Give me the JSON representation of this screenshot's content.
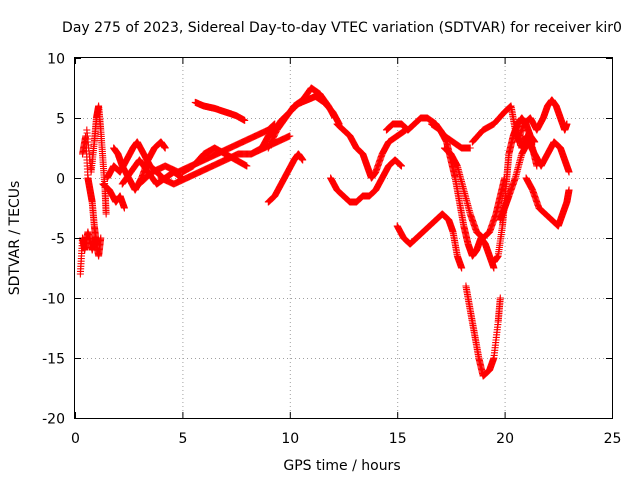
{
  "chart_data": {
    "type": "scatter",
    "title": "Day 275 of 2023, Sidereal Day-to-day VTEC variation (SDTVAR) for receiver kir0",
    "xlabel": "GPS time / hours",
    "ylabel": "SDTVAR / TECUs",
    "xlim": [
      0,
      25
    ],
    "ylim": [
      -20,
      10
    ],
    "xticks": [
      0,
      5,
      10,
      15,
      20,
      25
    ],
    "yticks": [
      -20,
      -15,
      -10,
      -5,
      0,
      5,
      10
    ],
    "grid": true,
    "marker": "+",
    "color": "#ff0000",
    "series": [
      {
        "points": [
          [
            0.25,
            -8.0
          ],
          [
            0.35,
            -5.0
          ],
          [
            0.45,
            -6.0
          ],
          [
            0.6,
            -4.5
          ],
          [
            0.8,
            -6.0
          ],
          [
            0.95,
            -5.0
          ],
          [
            1.1,
            -6.5
          ],
          [
            1.2,
            -5.0
          ]
        ]
      },
      {
        "points": [
          [
            0.35,
            2.0
          ],
          [
            0.5,
            3.5
          ],
          [
            0.6,
            0.0
          ],
          [
            0.7,
            -1.0
          ],
          [
            0.8,
            -2.0
          ],
          [
            0.9,
            -4.0
          ],
          [
            1.0,
            -5.5
          ]
        ]
      },
      {
        "points": [
          [
            0.55,
            4.0
          ],
          [
            0.75,
            0.5
          ],
          [
            0.9,
            3.0
          ],
          [
            1.0,
            5.0
          ],
          [
            1.1,
            6.0
          ],
          [
            1.2,
            4.0
          ],
          [
            1.3,
            1.5
          ],
          [
            1.4,
            -1.0
          ],
          [
            1.45,
            -3.0
          ]
        ]
      },
      {
        "points": [
          [
            1.3,
            -0.5
          ],
          [
            1.6,
            -1.0
          ],
          [
            1.9,
            -2.0
          ],
          [
            2.1,
            -1.5
          ],
          [
            2.3,
            -2.5
          ]
        ]
      },
      {
        "points": [
          [
            1.5,
            0.0
          ],
          [
            1.8,
            1.0
          ],
          [
            2.1,
            0.5
          ],
          [
            2.4,
            1.5
          ],
          [
            2.7,
            2.5
          ],
          [
            2.9,
            3.0
          ],
          [
            3.2,
            2.0
          ],
          [
            3.5,
            1.0
          ],
          [
            3.8,
            0.5
          ],
          [
            4.1,
            0.0
          ]
        ]
      },
      {
        "points": [
          [
            1.8,
            2.5
          ],
          [
            2.0,
            2.0
          ],
          [
            2.2,
            1.0
          ],
          [
            2.5,
            0.0
          ],
          [
            2.8,
            -1.0
          ],
          [
            3.1,
            0.0
          ],
          [
            3.4,
            1.5
          ],
          [
            3.7,
            2.5
          ],
          [
            4.0,
            3.0
          ],
          [
            4.2,
            2.5
          ]
        ]
      },
      {
        "points": [
          [
            2.2,
            -0.5
          ],
          [
            2.6,
            0.5
          ],
          [
            3.0,
            1.5
          ],
          [
            3.4,
            0.5
          ],
          [
            3.8,
            -0.5
          ],
          [
            4.2,
            0.0
          ],
          [
            4.6,
            0.5
          ],
          [
            5.0,
            0.0
          ]
        ]
      },
      {
        "points": [
          [
            3.0,
            -0.5
          ],
          [
            3.6,
            0.5
          ],
          [
            4.2,
            1.0
          ],
          [
            4.8,
            0.5
          ],
          [
            5.4,
            1.0
          ],
          [
            6.0,
            1.5
          ],
          [
            6.6,
            2.0
          ],
          [
            7.2,
            2.5
          ],
          [
            7.8,
            3.0
          ],
          [
            8.4,
            3.5
          ],
          [
            9.0,
            4.0
          ],
          [
            9.3,
            4.5
          ]
        ]
      },
      {
        "points": [
          [
            4.0,
            0.0
          ],
          [
            4.6,
            -0.5
          ],
          [
            5.2,
            0.0
          ],
          [
            5.8,
            0.5
          ],
          [
            6.4,
            1.0
          ],
          [
            7.0,
            1.5
          ],
          [
            7.6,
            2.0
          ],
          [
            8.2,
            2.0
          ],
          [
            8.8,
            2.5
          ],
          [
            9.4,
            3.0
          ],
          [
            10.0,
            3.5
          ]
        ]
      },
      {
        "points": [
          [
            5.0,
            0.5
          ],
          [
            5.5,
            1.0
          ],
          [
            6.0,
            2.0
          ],
          [
            6.5,
            2.5
          ],
          [
            7.0,
            2.0
          ],
          [
            7.5,
            1.5
          ],
          [
            8.0,
            1.0
          ]
        ]
      },
      {
        "points": [
          [
            5.6,
            6.3
          ],
          [
            6.0,
            6.0
          ],
          [
            6.5,
            5.8
          ],
          [
            7.0,
            5.5
          ],
          [
            7.5,
            5.2
          ],
          [
            7.9,
            4.8
          ]
        ]
      },
      {
        "points": [
          [
            8.2,
            2.0
          ],
          [
            8.7,
            2.5
          ],
          [
            9.0,
            3.5
          ],
          [
            9.3,
            4.0
          ],
          [
            9.6,
            4.8
          ],
          [
            10.0,
            5.5
          ],
          [
            10.4,
            6.2
          ],
          [
            10.8,
            6.5
          ],
          [
            11.2,
            6.8
          ],
          [
            11.6,
            6.3
          ],
          [
            12.0,
            5.5
          ],
          [
            12.3,
            4.5
          ]
        ]
      },
      {
        "points": [
          [
            9.0,
            2.5
          ],
          [
            9.4,
            4.0
          ],
          [
            9.8,
            5.0
          ],
          [
            10.2,
            6.0
          ],
          [
            10.6,
            6.5
          ],
          [
            11.0,
            7.5
          ],
          [
            11.4,
            7.0
          ],
          [
            11.8,
            6.0
          ],
          [
            12.1,
            5.0
          ]
        ]
      },
      {
        "points": [
          [
            9.0,
            -2.0
          ],
          [
            9.3,
            -1.5
          ],
          [
            9.6,
            -0.5
          ],
          [
            9.9,
            0.5
          ],
          [
            10.2,
            1.5
          ],
          [
            10.4,
            2.0
          ],
          [
            10.6,
            1.5
          ]
        ]
      },
      {
        "points": [
          [
            11.9,
            0.0
          ],
          [
            12.2,
            -1.0
          ],
          [
            12.5,
            -1.5
          ],
          [
            12.8,
            -2.0
          ],
          [
            13.1,
            -2.0
          ],
          [
            13.4,
            -1.5
          ],
          [
            13.7,
            -1.5
          ],
          [
            14.0,
            -1.0
          ],
          [
            14.3,
            0.0
          ],
          [
            14.6,
            1.0
          ],
          [
            14.9,
            1.5
          ],
          [
            15.2,
            1.0
          ]
        ]
      },
      {
        "points": [
          [
            12.2,
            4.5
          ],
          [
            12.5,
            4.0
          ],
          [
            12.8,
            3.5
          ],
          [
            13.1,
            2.5
          ],
          [
            13.4,
            2.0
          ],
          [
            13.6,
            1.0
          ],
          [
            13.8,
            0.0
          ],
          [
            14.0,
            0.5
          ],
          [
            14.3,
            2.0
          ],
          [
            14.6,
            3.0
          ],
          [
            15.0,
            3.5
          ],
          [
            15.4,
            4.0
          ]
        ]
      },
      {
        "points": [
          [
            14.5,
            4.0
          ],
          [
            14.8,
            4.5
          ],
          [
            15.2,
            4.5
          ],
          [
            15.5,
            4.0
          ],
          [
            15.8,
            4.5
          ],
          [
            16.1,
            5.0
          ],
          [
            16.4,
            5.0
          ],
          [
            16.8,
            4.5
          ],
          [
            17.2,
            3.5
          ],
          [
            17.6,
            3.0
          ],
          [
            18.0,
            2.5
          ],
          [
            18.4,
            2.5
          ]
        ]
      },
      {
        "points": [
          [
            15.0,
            -4.0
          ],
          [
            15.3,
            -5.0
          ],
          [
            15.6,
            -5.5
          ],
          [
            15.9,
            -5.0
          ],
          [
            16.2,
            -4.5
          ],
          [
            16.5,
            -4.0
          ],
          [
            16.8,
            -3.5
          ],
          [
            17.1,
            -3.0
          ],
          [
            17.4,
            -3.5
          ],
          [
            17.6,
            -4.5
          ],
          [
            17.8,
            -6.5
          ],
          [
            18.0,
            -7.5
          ]
        ]
      },
      {
        "points": [
          [
            16.6,
            4.5
          ],
          [
            17.0,
            4.0
          ],
          [
            17.3,
            3.0
          ],
          [
            17.5,
            1.5
          ],
          [
            17.7,
            0.0
          ],
          [
            17.9,
            -2.0
          ],
          [
            18.1,
            -4.0
          ],
          [
            18.3,
            -5.5
          ],
          [
            18.5,
            -6.5
          ],
          [
            18.7,
            -6.0
          ],
          [
            18.9,
            -5.0
          ],
          [
            19.1,
            -5.5
          ],
          [
            19.3,
            -6.5
          ],
          [
            19.5,
            -7.5
          ]
        ]
      },
      {
        "points": [
          [
            17.2,
            2.5
          ],
          [
            17.5,
            2.0
          ],
          [
            17.8,
            1.0
          ],
          [
            18.1,
            -1.0
          ],
          [
            18.4,
            -3.0
          ],
          [
            18.7,
            -4.5
          ],
          [
            19.0,
            -5.0
          ],
          [
            19.3,
            -4.5
          ],
          [
            19.6,
            -3.0
          ],
          [
            19.8,
            -1.5
          ],
          [
            20.0,
            0.0
          ]
        ]
      },
      {
        "points": [
          [
            18.2,
            -9.0
          ],
          [
            18.4,
            -11.0
          ],
          [
            18.6,
            -13.0
          ],
          [
            18.8,
            -15.0
          ],
          [
            19.0,
            -16.5
          ],
          [
            19.3,
            -16.0
          ],
          [
            19.5,
            -15.0
          ],
          [
            19.7,
            -12.0
          ],
          [
            19.8,
            -10.0
          ]
        ]
      },
      {
        "points": [
          [
            19.5,
            -7.0
          ],
          [
            19.7,
            -6.5
          ],
          [
            19.9,
            -4.0
          ],
          [
            20.0,
            -2.0
          ],
          [
            20.1,
            0.0
          ],
          [
            20.2,
            2.0
          ],
          [
            20.4,
            3.5
          ],
          [
            20.6,
            4.5
          ],
          [
            20.8,
            5.0
          ],
          [
            21.0,
            4.5
          ],
          [
            21.2,
            3.5
          ],
          [
            21.4,
            3.0
          ]
        ]
      },
      {
        "points": [
          [
            19.8,
            -3.5
          ],
          [
            20.0,
            -2.5
          ],
          [
            20.2,
            -1.5
          ],
          [
            20.5,
            0.0
          ],
          [
            20.8,
            2.0
          ],
          [
            21.1,
            3.0
          ],
          [
            21.4,
            2.0
          ],
          [
            21.7,
            1.0
          ],
          [
            22.0,
            2.0
          ],
          [
            22.3,
            3.0
          ],
          [
            22.6,
            2.5
          ],
          [
            22.8,
            1.5
          ],
          [
            23.0,
            0.5
          ]
        ]
      },
      {
        "points": [
          [
            18.5,
            3.0
          ],
          [
            19.0,
            4.0
          ],
          [
            19.5,
            4.5
          ],
          [
            20.0,
            5.5
          ],
          [
            20.3,
            6.0
          ],
          [
            20.5,
            4.0
          ],
          [
            20.8,
            2.5
          ],
          [
            21.0,
            3.5
          ],
          [
            21.3,
            2.5
          ],
          [
            21.5,
            1.0
          ]
        ]
      },
      {
        "points": [
          [
            20.6,
            3.0
          ],
          [
            20.9,
            4.5
          ],
          [
            21.2,
            5.0
          ],
          [
            21.5,
            4.0
          ],
          [
            21.8,
            5.0
          ],
          [
            22.0,
            6.0
          ],
          [
            22.2,
            6.5
          ],
          [
            22.4,
            6.0
          ],
          [
            22.6,
            5.0
          ],
          [
            22.8,
            4.0
          ],
          [
            22.9,
            4.5
          ]
        ]
      },
      {
        "points": [
          [
            21.0,
            0.0
          ],
          [
            21.3,
            -1.0
          ],
          [
            21.6,
            -2.5
          ],
          [
            21.9,
            -3.0
          ],
          [
            22.2,
            -3.5
          ],
          [
            22.5,
            -4.0
          ],
          [
            22.7,
            -3.0
          ],
          [
            22.9,
            -2.0
          ],
          [
            23.0,
            -1.0
          ]
        ]
      }
    ]
  }
}
